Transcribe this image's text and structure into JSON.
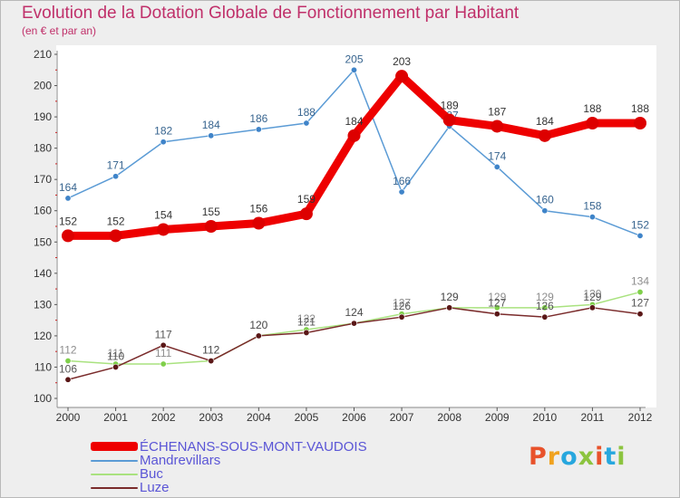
{
  "title": "Evolution de la Dotation Globale de Fonctionnement par Habitant",
  "subtitle": "(en € et par an)",
  "logo": {
    "text": "Proxiti",
    "colors": [
      "#e8522b",
      "#f0a21f",
      "#27a7de",
      "#8cc43f",
      "#e8522b",
      "#27a7de",
      "#8cc43f"
    ]
  },
  "chart_data": {
    "type": "line",
    "title": "Evolution de la Dotation Globale de Fonctionnement par Habitant",
    "subtitle": "(en € et par an)",
    "x": [
      "2000",
      "2001",
      "2002",
      "2003",
      "2004",
      "2005",
      "2006",
      "2007",
      "2008",
      "2009",
      "2010",
      "2011",
      "2012"
    ],
    "ylim": [
      100,
      210
    ],
    "yticks": [
      100,
      110,
      120,
      130,
      140,
      150,
      160,
      170,
      180,
      190,
      200,
      210
    ],
    "grid": false,
    "legend_position": "bottom-left",
    "series": [
      {
        "name": "Mandrevillars",
        "color": "#5b9bd5",
        "dot": "#3f84c9",
        "label_color": "#37648f",
        "values": [
          164,
          171,
          182,
          184,
          186,
          188,
          205,
          166,
          187,
          174,
          160,
          158,
          152
        ]
      },
      {
        "name": "Buc",
        "color": "#a9e27f",
        "dot": "#7fcf4a",
        "label_color": "#8d8d8d",
        "values": [
          112,
          111,
          111,
          112,
          120,
          122,
          124,
          127,
          129,
          129,
          129,
          130,
          134
        ]
      },
      {
        "name": "Luze",
        "color": "#7a2b2b",
        "dot": "#5a1717",
        "label_color": "#555555",
        "values": [
          106,
          110,
          117,
          112,
          120,
          121,
          124,
          126,
          129,
          127,
          126,
          129,
          127
        ]
      },
      {
        "name": "ÉCHENANS-SOUS-MONT-VAUDOIS",
        "color": "#ee0000",
        "dot": "#dd0000",
        "label_color": "#333333",
        "values": [
          152,
          152,
          154,
          155,
          156,
          159,
          184,
          203,
          189,
          187,
          184,
          188,
          188
        ]
      }
    ],
    "legend": [
      "ÉCHENANS-SOUS-MONT-VAUDOIS",
      "Mandrevillars",
      "Buc",
      "Luze"
    ]
  }
}
